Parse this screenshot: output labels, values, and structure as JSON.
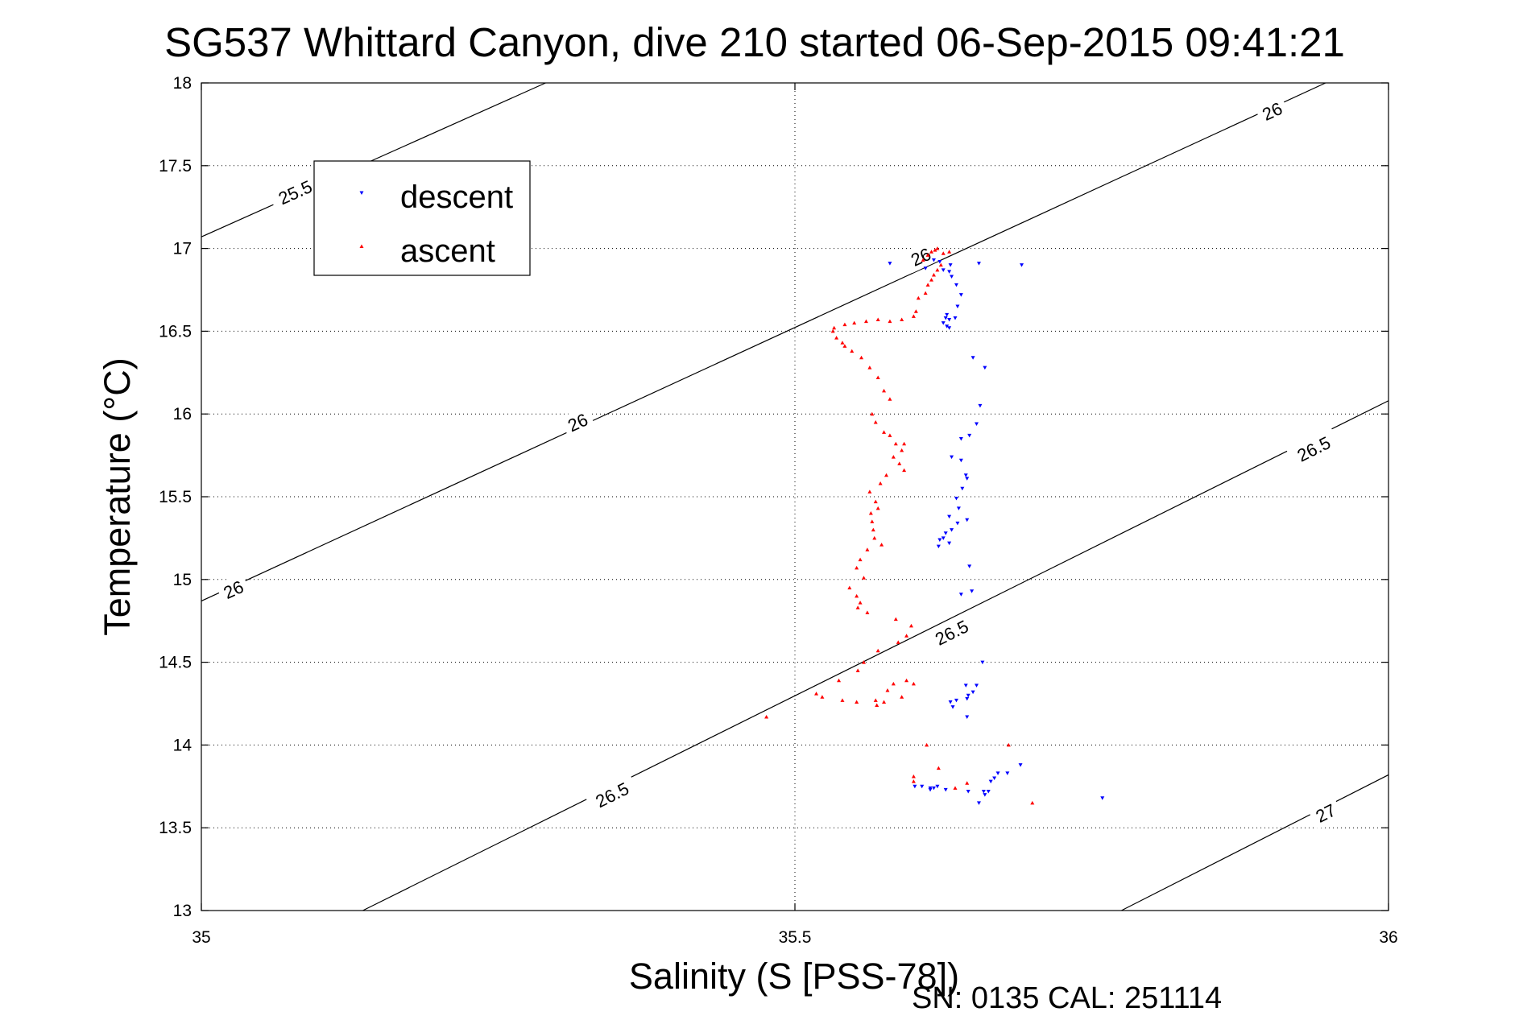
{
  "chart_data": {
    "type": "scatter",
    "title": "SG537 Whittard Canyon, dive 210 started 06-Sep-2015 09:41:21",
    "xlabel": "Salinity (S [PSS-78])",
    "ylabel": "Temperature (°C)",
    "xlim": [
      35,
      36
    ],
    "ylim": [
      13,
      18
    ],
    "xticks": [
      35,
      35.5,
      36
    ],
    "xtick_labels": [
      "35",
      "35.5",
      "36"
    ],
    "yticks": [
      13,
      13.5,
      14,
      14.5,
      15,
      15.5,
      16,
      16.5,
      17,
      17.5,
      18
    ],
    "ytick_labels": [
      "13",
      "13.5",
      "14",
      "14.5",
      "15",
      "15.5",
      "16",
      "16.5",
      "17",
      "17.5",
      "18"
    ],
    "grid": true,
    "legend_position": "top-left",
    "footnote": "SN: 0135  CAL: 251114",
    "colors": {
      "descent": "#0000ff",
      "ascent": "#ff0000",
      "contour": "#000000"
    },
    "contours": [
      {
        "level": "25.5",
        "points": [
          [
            35.0,
            17.07
          ],
          [
            35.29,
            18.0
          ]
        ],
        "labels": [
          {
            "text": "25.5",
            "x": 35.079,
            "y": 17.34
          }
        ]
      },
      {
        "level": "26",
        "points": [
          [
            35.0,
            14.87
          ],
          [
            35.947,
            18.0
          ]
        ],
        "labels": [
          {
            "text": "26",
            "x": 35.027,
            "y": 14.94
          },
          {
            "text": "26",
            "x": 35.317,
            "y": 15.95
          },
          {
            "text": "26",
            "x": 35.606,
            "y": 16.95
          },
          {
            "text": "26",
            "x": 35.902,
            "y": 17.83
          }
        ]
      },
      {
        "level": "26.5",
        "points": [
          [
            35.136,
            13.0
          ],
          [
            36.0,
            16.08
          ]
        ],
        "labels": [
          {
            "text": "26.5",
            "x": 35.346,
            "y": 13.7
          },
          {
            "text": "26.5",
            "x": 35.632,
            "y": 14.68
          },
          {
            "text": "26.5",
            "x": 35.937,
            "y": 15.79
          }
        ]
      },
      {
        "level": "27",
        "points": [
          [
            35.775,
            13.0
          ],
          [
            36.0,
            13.82
          ]
        ],
        "labels": [
          {
            "text": "27",
            "x": 35.947,
            "y": 13.59
          }
        ]
      }
    ],
    "series": [
      {
        "name": "descent",
        "marker": "triangle-down",
        "x": [
          35.58,
          35.617,
          35.622,
          35.631,
          35.655,
          35.691,
          35.61,
          35.625,
          35.63,
          35.632,
          35.636,
          35.64,
          35.637,
          35.628,
          35.627,
          35.625,
          35.628,
          35.63,
          35.63,
          35.635,
          35.65,
          35.66,
          35.656,
          35.653,
          35.647,
          35.64,
          35.632,
          35.64,
          35.644,
          35.645,
          35.641,
          35.636,
          35.638,
          35.63,
          35.645,
          35.637,
          35.632,
          35.627,
          35.625,
          35.622,
          35.63,
          35.621,
          35.647,
          35.649,
          35.64,
          35.658,
          35.644,
          35.65,
          35.646,
          35.645,
          35.636,
          35.653,
          35.631,
          35.633,
          35.645,
          35.62,
          35.617,
          35.614,
          35.601,
          35.607,
          35.614,
          35.627,
          35.646,
          35.655,
          35.66,
          35.665,
          35.668,
          35.659,
          35.663,
          35.671,
          35.679,
          35.69,
          35.759
        ],
        "y": [
          16.91,
          16.93,
          16.92,
          16.9,
          16.91,
          16.9,
          16.88,
          16.87,
          16.86,
          16.83,
          16.78,
          16.72,
          16.65,
          16.6,
          16.58,
          16.55,
          16.53,
          16.57,
          16.52,
          16.58,
          16.34,
          16.28,
          16.05,
          15.94,
          15.87,
          15.85,
          15.74,
          15.72,
          15.63,
          15.61,
          15.55,
          15.49,
          15.43,
          15.38,
          15.36,
          15.34,
          15.3,
          15.28,
          15.25,
          15.24,
          15.22,
          15.2,
          15.08,
          14.93,
          14.91,
          14.5,
          14.36,
          14.32,
          14.3,
          14.28,
          14.27,
          14.36,
          14.26,
          14.23,
          14.17,
          13.75,
          13.74,
          13.73,
          13.75,
          13.75,
          13.74,
          13.73,
          13.72,
          13.65,
          13.7,
          13.78,
          13.8,
          13.72,
          13.72,
          13.83,
          13.83,
          13.88,
          13.68
        ]
      },
      {
        "name": "ascent",
        "marker": "triangle-up",
        "x": [
          35.608,
          35.612,
          35.615,
          35.62,
          35.618,
          35.625,
          35.63,
          35.623,
          35.62,
          35.617,
          35.615,
          35.612,
          35.61,
          35.604,
          35.602,
          35.6,
          35.59,
          35.58,
          35.57,
          35.56,
          35.55,
          35.542,
          35.533,
          35.532,
          35.535,
          35.54,
          35.542,
          35.548,
          35.556,
          35.563,
          35.57,
          35.575,
          35.58,
          35.565,
          35.568,
          35.575,
          35.58,
          35.592,
          35.585,
          35.59,
          35.583,
          35.588,
          35.592,
          35.577,
          35.572,
          35.563,
          35.568,
          35.57,
          35.564,
          35.565,
          35.566,
          35.567,
          35.573,
          35.561,
          35.555,
          35.552,
          35.558,
          35.546,
          35.552,
          35.555,
          35.553,
          35.561,
          35.585,
          35.598,
          35.594,
          35.587,
          35.57,
          35.558,
          35.553,
          35.537,
          35.518,
          35.476,
          35.523,
          35.54,
          35.552,
          35.569,
          35.575,
          35.568,
          35.59,
          35.578,
          35.583,
          35.594,
          35.6,
          35.611,
          35.621,
          35.635,
          35.645,
          35.6,
          35.6,
          35.7,
          35.68
        ],
        "y": [
          16.93,
          16.96,
          16.98,
          17.0,
          16.99,
          16.97,
          16.98,
          16.9,
          16.87,
          16.84,
          16.81,
          16.78,
          16.73,
          16.7,
          16.62,
          16.59,
          16.57,
          16.56,
          16.57,
          16.56,
          16.55,
          16.54,
          16.52,
          16.5,
          16.46,
          16.43,
          16.41,
          16.38,
          16.34,
          16.28,
          16.22,
          16.14,
          16.09,
          16.0,
          15.95,
          15.89,
          15.87,
          15.82,
          15.82,
          15.78,
          15.74,
          15.7,
          15.66,
          15.63,
          15.58,
          15.53,
          15.47,
          15.43,
          15.4,
          15.35,
          15.3,
          15.25,
          15.21,
          15.18,
          15.12,
          15.07,
          15.01,
          14.95,
          14.9,
          14.86,
          14.83,
          14.8,
          14.76,
          14.72,
          14.66,
          14.62,
          14.57,
          14.5,
          14.45,
          14.39,
          14.31,
          14.17,
          14.29,
          14.27,
          14.26,
          14.24,
          14.26,
          14.27,
          14.29,
          14.33,
          14.37,
          14.39,
          14.37,
          14.0,
          13.86,
          13.74,
          13.77,
          13.78,
          13.81,
          13.65,
          14.0
        ]
      }
    ]
  }
}
